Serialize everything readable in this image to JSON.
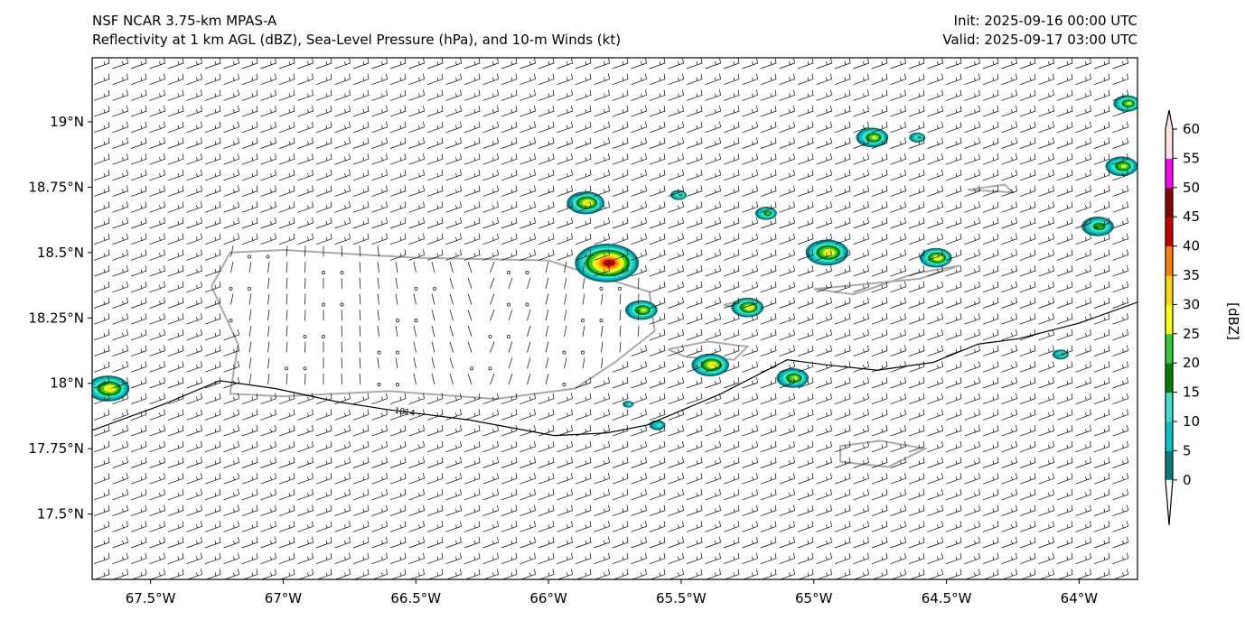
{
  "header": {
    "title_line1": "NSF NCAR 3.75-km MPAS-A",
    "title_line2": "Reflectivity at 1 km AGL (dBZ), Sea-Level Pressure (hPa), and 10-m Winds (kt)",
    "init": "Init: 2025-09-16 00:00 UTC",
    "valid": "Valid: 2025-09-17 03:00 UTC"
  },
  "chart_data": {
    "type": "map",
    "extent": {
      "lon": [
        -67.72,
        -63.78
      ],
      "lat": [
        17.25,
        19.245
      ]
    },
    "x_ticks": [
      {
        "value": -67.5,
        "label": "67.5°W"
      },
      {
        "value": -67.0,
        "label": "67°W"
      },
      {
        "value": -66.5,
        "label": "66.5°W"
      },
      {
        "value": -66.0,
        "label": "66°W"
      },
      {
        "value": -65.5,
        "label": "65.5°W"
      },
      {
        "value": -65.0,
        "label": "65°W"
      },
      {
        "value": -64.5,
        "label": "64.5°W"
      },
      {
        "value": -64.0,
        "label": "64°W"
      }
    ],
    "y_ticks": [
      {
        "value": 19.0,
        "label": "19°N"
      },
      {
        "value": 18.75,
        "label": "18.75°N"
      },
      {
        "value": 18.5,
        "label": "18.5°N"
      },
      {
        "value": 18.25,
        "label": "18.25°N"
      },
      {
        "value": 18.0,
        "label": "18°N"
      },
      {
        "value": 17.75,
        "label": "17.75°N"
      },
      {
        "value": 17.5,
        "label": "17.5°N"
      }
    ],
    "isobar": {
      "label": "1014",
      "label_at": [
        -66.58,
        17.9
      ],
      "points": [
        [
          -67.72,
          17.82
        ],
        [
          -67.45,
          17.92
        ],
        [
          -67.24,
          18.01
        ],
        [
          -67.03,
          17.98
        ],
        [
          -66.8,
          17.93
        ],
        [
          -66.61,
          17.9
        ],
        [
          -66.3,
          17.86
        ],
        [
          -65.98,
          17.8
        ],
        [
          -65.78,
          17.81
        ],
        [
          -65.63,
          17.84
        ],
        [
          -65.35,
          17.96
        ],
        [
          -65.1,
          18.09
        ],
        [
          -64.95,
          18.07
        ],
        [
          -64.76,
          18.05
        ],
        [
          -64.55,
          18.08
        ],
        [
          -64.38,
          18.15
        ],
        [
          -64.23,
          18.17
        ],
        [
          -64.0,
          18.23
        ],
        [
          -63.78,
          18.31
        ]
      ]
    },
    "wind": {
      "direction_from_deg": 100,
      "speed_kt": 15,
      "calm_over_land": true
    },
    "storm_cells": [
      {
        "lon": -65.86,
        "lat": 18.69,
        "r": 0.07,
        "max_dbz": 30
      },
      {
        "lon": -65.78,
        "lat": 18.46,
        "r": 0.12,
        "max_dbz": 45
      },
      {
        "lon": -65.65,
        "lat": 18.28,
        "r": 0.06,
        "max_dbz": 25
      },
      {
        "lon": -65.39,
        "lat": 18.07,
        "r": 0.07,
        "max_dbz": 30
      },
      {
        "lon": -65.08,
        "lat": 18.02,
        "r": 0.06,
        "max_dbz": 25
      },
      {
        "lon": -65.25,
        "lat": 18.29,
        "r": 0.06,
        "max_dbz": 30
      },
      {
        "lon": -64.95,
        "lat": 18.5,
        "r": 0.08,
        "max_dbz": 30
      },
      {
        "lon": -64.78,
        "lat": 18.94,
        "r": 0.06,
        "max_dbz": 25
      },
      {
        "lon": -64.54,
        "lat": 18.48,
        "r": 0.06,
        "max_dbz": 30
      },
      {
        "lon": -63.93,
        "lat": 18.6,
        "r": 0.06,
        "max_dbz": 20
      },
      {
        "lon": -63.84,
        "lat": 18.83,
        "r": 0.06,
        "max_dbz": 25
      },
      {
        "lon": -63.82,
        "lat": 19.07,
        "r": 0.05,
        "max_dbz": 25
      },
      {
        "lon": -64.61,
        "lat": 18.94,
        "r": 0.03,
        "max_dbz": 15
      },
      {
        "lon": -65.51,
        "lat": 18.72,
        "r": 0.03,
        "max_dbz": 15
      },
      {
        "lon": -65.18,
        "lat": 18.65,
        "r": 0.04,
        "max_dbz": 20
      },
      {
        "lon": -67.66,
        "lat": 17.98,
        "r": 0.08,
        "max_dbz": 30
      },
      {
        "lon": -64.07,
        "lat": 18.11,
        "r": 0.03,
        "max_dbz": 15
      },
      {
        "lon": -65.7,
        "lat": 17.92,
        "r": 0.02,
        "max_dbz": 10
      },
      {
        "lon": -65.59,
        "lat": 17.84,
        "r": 0.03,
        "max_dbz": 10
      }
    ],
    "land": [
      {
        "name": "Puerto Rico",
        "points": [
          [
            -67.27,
            18.37
          ],
          [
            -67.2,
            18.5
          ],
          [
            -67.0,
            18.51
          ],
          [
            -66.5,
            18.48
          ],
          [
            -66.0,
            18.47
          ],
          [
            -65.85,
            18.42
          ],
          [
            -65.62,
            18.35
          ],
          [
            -65.6,
            18.2
          ],
          [
            -65.75,
            18.08
          ],
          [
            -65.9,
            17.98
          ],
          [
            -66.2,
            17.94
          ],
          [
            -66.6,
            17.97
          ],
          [
            -67.0,
            17.95
          ],
          [
            -67.2,
            17.96
          ],
          [
            -67.17,
            18.15
          ],
          [
            -67.27,
            18.37
          ]
        ]
      },
      {
        "name": "Vieques",
        "points": [
          [
            -65.55,
            18.13
          ],
          [
            -65.4,
            18.16
          ],
          [
            -65.25,
            18.14
          ],
          [
            -65.3,
            18.09
          ],
          [
            -65.48,
            18.1
          ],
          [
            -65.55,
            18.13
          ]
        ]
      },
      {
        "name": "Culebra",
        "points": [
          [
            -65.34,
            18.3
          ],
          [
            -65.24,
            18.32
          ],
          [
            -65.26,
            18.28
          ],
          [
            -65.34,
            18.3
          ]
        ]
      },
      {
        "name": "St Croix",
        "points": [
          [
            -64.9,
            17.7
          ],
          [
            -64.9,
            17.76
          ],
          [
            -64.75,
            17.78
          ],
          [
            -64.58,
            17.75
          ],
          [
            -64.72,
            17.68
          ],
          [
            -64.9,
            17.7
          ]
        ]
      },
      {
        "name": "Virgin Islands",
        "points": [
          [
            -65.0,
            18.36
          ],
          [
            -64.8,
            18.38
          ],
          [
            -64.6,
            18.4
          ],
          [
            -64.45,
            18.45
          ],
          [
            -64.62,
            18.42
          ],
          [
            -64.85,
            18.34
          ],
          [
            -65.0,
            18.36
          ]
        ]
      },
      {
        "name": "Anegada",
        "points": [
          [
            -64.42,
            18.74
          ],
          [
            -64.28,
            18.76
          ],
          [
            -64.25,
            18.73
          ],
          [
            -64.42,
            18.74
          ]
        ]
      }
    ]
  },
  "colorbar": {
    "label": "[dBZ]",
    "ticks": [
      "0",
      "5",
      "10",
      "15",
      "20",
      "25",
      "30",
      "35",
      "40",
      "45",
      "50",
      "55",
      "60"
    ],
    "under_color": "#ffffff",
    "colors": [
      "#008080",
      "#00c5cd",
      "#40e0d0",
      "#008000",
      "#32cd32",
      "#ffff00",
      "#ffd700",
      "#ff7f00",
      "#cc0000",
      "#8b0000",
      "#ff00ff",
      "#ffe4e1"
    ]
  }
}
